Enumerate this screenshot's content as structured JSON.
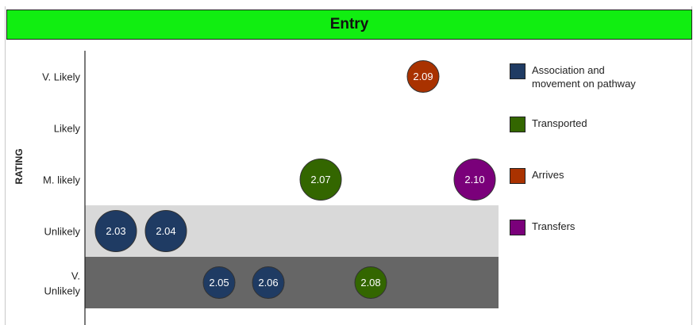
{
  "title": "Entry",
  "chart_data": {
    "type": "scatter",
    "ylabel": "RATING",
    "y_categories": [
      "V. Likely",
      "Likely",
      "M. likely",
      "Unlikely",
      "V. Unlikely"
    ],
    "bands": [
      {
        "category": "Unlikely",
        "color": "#d9d9d9"
      },
      {
        "category": "V. Unlikely",
        "color": "#666666"
      }
    ],
    "series": [
      {
        "name": "Association and movement on pathway",
        "color": "#1f3b63",
        "points": [
          {
            "label": "2.03",
            "rating": "Unlikely",
            "order": 1
          },
          {
            "label": "2.04",
            "rating": "Unlikely",
            "order": 2
          },
          {
            "label": "2.05",
            "rating": "V. Unlikely",
            "order": 3
          },
          {
            "label": "2.06",
            "rating": "V. Unlikely",
            "order": 4
          }
        ]
      },
      {
        "name": "Transported",
        "color": "#336600",
        "points": [
          {
            "label": "2.07",
            "rating": "M. likely",
            "order": 5
          },
          {
            "label": "2.08",
            "rating": "V. Unlikely",
            "order": 6
          }
        ]
      },
      {
        "name": "Arrives",
        "color": "#a93200",
        "points": [
          {
            "label": "2.09",
            "rating": "V. Likely",
            "order": 7
          }
        ]
      },
      {
        "name": "Transfers",
        "color": "#7a007a",
        "points": [
          {
            "label": "2.10",
            "rating": "M. likely",
            "order": 8
          }
        ]
      }
    ]
  }
}
